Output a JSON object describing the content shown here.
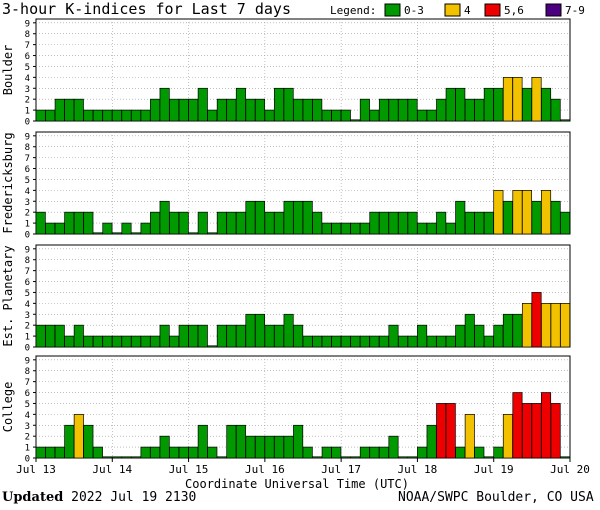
{
  "header": {
    "title": "3-hour K-indices for Last 7 days",
    "legend_label": "Legend:",
    "legend": [
      {
        "label": "0-3",
        "color": "#009900"
      },
      {
        "label": "4",
        "color": "#f2c200"
      },
      {
        "label": "5,6",
        "color": "#ee0000"
      },
      {
        "label": "7-9",
        "color": "#4b0082"
      }
    ]
  },
  "chart_data": {
    "type": "bar",
    "ylim": [
      0,
      9
    ],
    "y_ticks": [
      "0",
      "1",
      "2",
      "3",
      "4",
      "5",
      "6",
      "7",
      "8",
      "9"
    ],
    "x_ticks": [
      "Jul 13",
      "Jul 14",
      "Jul 15",
      "Jul 16",
      "Jul 17",
      "Jul 18",
      "Jul 19",
      "Jul 20"
    ],
    "xlabel": "Coordinate Universal Time (UTC)",
    "grid": true,
    "panels": [
      {
        "name": "Boulder",
        "values": [
          1,
          1,
          2,
          2,
          2,
          1,
          1,
          1,
          1,
          1,
          1,
          1,
          2,
          3,
          2,
          2,
          2,
          3,
          1,
          2,
          2,
          3,
          2,
          2,
          1,
          3,
          3,
          2,
          2,
          2,
          1,
          1,
          1,
          0,
          2,
          1,
          2,
          2,
          2,
          2,
          1,
          1,
          2,
          3,
          3,
          2,
          2,
          3,
          3,
          4,
          4,
          3,
          4,
          3,
          2,
          0
        ]
      },
      {
        "name": "Fredericksburg",
        "values": [
          2,
          1,
          1,
          2,
          2,
          2,
          0,
          1,
          0,
          1,
          0,
          1,
          2,
          3,
          2,
          2,
          0,
          2,
          0,
          2,
          2,
          2,
          3,
          3,
          2,
          2,
          3,
          3,
          3,
          2,
          1,
          1,
          1,
          1,
          1,
          2,
          2,
          2,
          2,
          2,
          1,
          1,
          2,
          1,
          3,
          2,
          2,
          2,
          4,
          3,
          4,
          4,
          3,
          4,
          3,
          2,
          0
        ]
      },
      {
        "name": "Est. Planetary",
        "values": [
          2,
          2,
          2,
          1,
          2,
          1,
          1,
          1,
          1,
          1,
          1,
          1,
          1,
          2,
          1,
          2,
          2,
          2,
          0,
          2,
          2,
          2,
          3,
          3,
          2,
          2,
          3,
          2,
          1,
          1,
          1,
          1,
          1,
          1,
          1,
          1,
          1,
          2,
          1,
          1,
          2,
          1,
          1,
          1,
          2,
          3,
          2,
          1,
          2,
          3,
          3,
          4,
          5,
          4,
          4,
          4,
          4
        ]
      },
      {
        "name": "College",
        "values": [
          1,
          1,
          1,
          3,
          4,
          3,
          1,
          0,
          0,
          0,
          0,
          1,
          1,
          2,
          1,
          1,
          1,
          3,
          1,
          0,
          3,
          3,
          2,
          2,
          2,
          2,
          2,
          3,
          1,
          0,
          1,
          1,
          0,
          0,
          1,
          1,
          1,
          2,
          0,
          0,
          1,
          3,
          5,
          5,
          1,
          4,
          1,
          0,
          1,
          4,
          6,
          5,
          5,
          6,
          5,
          0
        ]
      }
    ]
  },
  "footer": {
    "updated_label": "Updated",
    "updated_time": "2022 Jul 19 2130",
    "source": "NOAA/SWPC Boulder, CO USA"
  }
}
